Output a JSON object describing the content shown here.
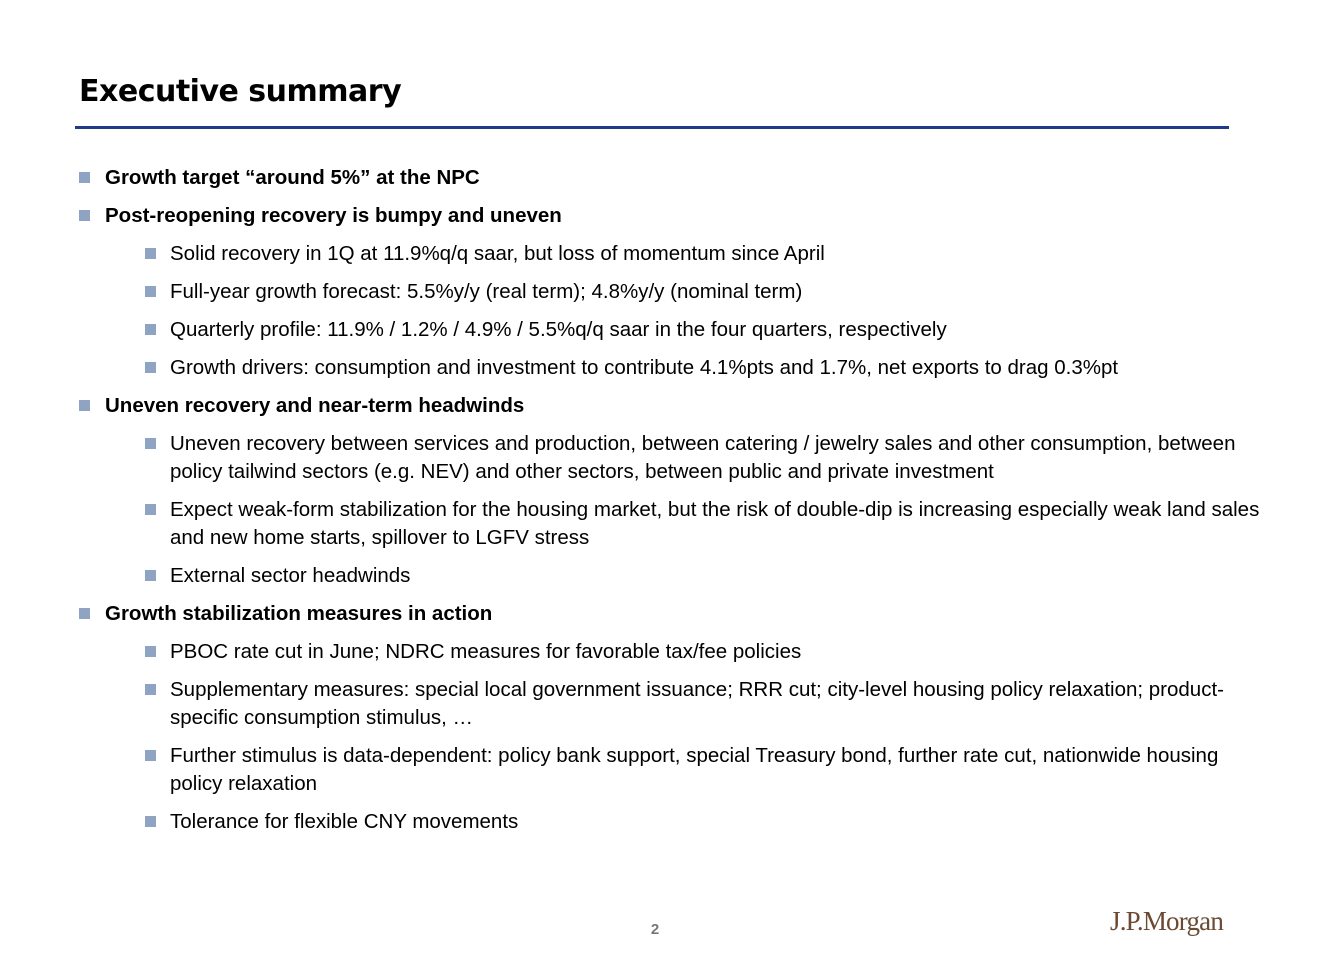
{
  "slide": {
    "title": "Executive summary",
    "accent_color": "#1f3a8a",
    "bullet_color": "#8fa3c3",
    "page_number": "2",
    "logo_text": "J.P.Morgan"
  },
  "bullets": [
    {
      "level": 1,
      "text": "Growth target “around 5%” at the NPC"
    },
    {
      "level": 1,
      "text": "Post-reopening recovery is bumpy and uneven"
    },
    {
      "level": 2,
      "text": "Solid recovery in 1Q at 11.9%q/q saar, but loss of momentum since April"
    },
    {
      "level": 2,
      "text": "Full-year growth forecast: 5.5%y/y (real term); 4.8%y/y (nominal term)"
    },
    {
      "level": 2,
      "text": "Quarterly profile: 11.9% / 1.2% / 4.9% / 5.5%q/q saar in the four quarters, respectively"
    },
    {
      "level": 2,
      "text": "Growth drivers: consumption and investment to contribute 4.1%pts and 1.7%, net exports to drag 0.3%pt"
    },
    {
      "level": 1,
      "text": "Uneven recovery and near-term headwinds"
    },
    {
      "level": 2,
      "text": "Uneven recovery between services and production, between catering / jewelry sales and other consumption, between policy tailwind sectors (e.g. NEV) and other sectors, between public and private investment"
    },
    {
      "level": 2,
      "text": "Expect weak-form stabilization for the housing market, but the risk of double-dip is increasing especially weak land sales and new home starts, spillover to LGFV stress"
    },
    {
      "level": 2,
      "text": "External sector headwinds"
    },
    {
      "level": 1,
      "text": "Growth stabilization measures in action"
    },
    {
      "level": 2,
      "text": "PBOC rate cut in June; NDRC measures for favorable tax/fee policies"
    },
    {
      "level": 2,
      "text": "Supplementary measures: special local government issuance; RRR cut; city-level housing policy relaxation; product-specific consumption stimulus, …"
    },
    {
      "level": 2,
      "text": "Further stimulus is data-dependent: policy bank support, special Treasury bond, further rate cut, nationwide housing policy relaxation"
    },
    {
      "level": 2,
      "text": "Tolerance for flexible CNY movements"
    }
  ]
}
